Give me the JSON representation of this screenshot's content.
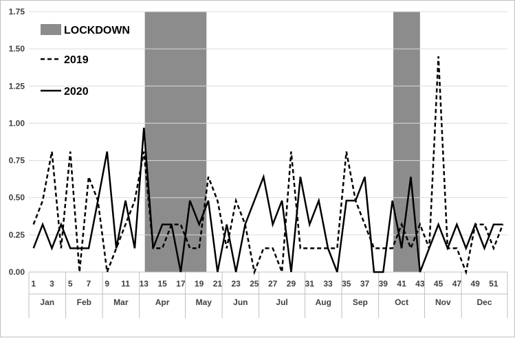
{
  "chart_data": {
    "type": "line",
    "title": "",
    "xlabel": "",
    "ylabel": "",
    "ylim": [
      0,
      1.75
    ],
    "yticks": [
      "0.00",
      "0.25",
      "0.50",
      "0.75",
      "1.00",
      "1.25",
      "1.50",
      "1.75"
    ],
    "grid": true,
    "legend_position": "top-left",
    "x": [
      1,
      2,
      3,
      4,
      5,
      6,
      7,
      8,
      9,
      10,
      11,
      12,
      13,
      14,
      15,
      16,
      17,
      18,
      19,
      20,
      21,
      22,
      23,
      24,
      25,
      26,
      27,
      28,
      29,
      30,
      31,
      32,
      33,
      34,
      35,
      36,
      37,
      38,
      39,
      40,
      41,
      42,
      43,
      44,
      45,
      46,
      47,
      48,
      49,
      50,
      51,
      52
    ],
    "x_tick_labels": [
      "1",
      "3",
      "5",
      "7",
      "9",
      "11",
      "13",
      "15",
      "17",
      "19",
      "21",
      "23",
      "25",
      "27",
      "29",
      "31",
      "33",
      "35",
      "37",
      "39",
      "41",
      "43",
      "45",
      "47",
      "49",
      "51"
    ],
    "months": [
      {
        "label": "Jan",
        "weeks": [
          1,
          4
        ]
      },
      {
        "label": "Feb",
        "weeks": [
          5,
          8
        ]
      },
      {
        "label": "Mar",
        "weeks": [
          9,
          12
        ]
      },
      {
        "label": "Apr",
        "weeks": [
          13,
          17
        ]
      },
      {
        "label": "May",
        "weeks": [
          18,
          21
        ]
      },
      {
        "label": "Jun",
        "weeks": [
          22,
          25
        ]
      },
      {
        "label": "Jul",
        "weeks": [
          26,
          30
        ]
      },
      {
        "label": "Aug",
        "weeks": [
          31,
          34
        ]
      },
      {
        "label": "Sep",
        "weeks": [
          35,
          38
        ]
      },
      {
        "label": "Oct",
        "weeks": [
          39,
          43
        ]
      },
      {
        "label": "Nov",
        "weeks": [
          44,
          47
        ]
      },
      {
        "label": "Dec",
        "weeks": [
          48,
          52
        ]
      }
    ],
    "lockdown_periods": [
      {
        "start_week": 12.6,
        "end_week": 19.3
      },
      {
        "start_week": 39.6,
        "end_week": 42.5
      }
    ],
    "legend": {
      "lockdown": "LOCKDOWN",
      "series_2019": "2019",
      "series_2020": "2020"
    },
    "series": [
      {
        "name": "2019",
        "style": "dashed",
        "color": "#000000",
        "values": [
          0.32,
          0.48,
          0.81,
          0.16,
          0.81,
          0.0,
          0.64,
          0.48,
          0.0,
          0.16,
          0.32,
          0.48,
          0.81,
          0.16,
          0.16,
          0.32,
          0.32,
          0.16,
          0.16,
          0.64,
          0.48,
          0.16,
          0.48,
          0.32,
          0.0,
          0.16,
          0.16,
          0.0,
          0.81,
          0.16,
          0.16,
          0.16,
          0.16,
          0.16,
          0.81,
          0.48,
          0.32,
          0.16,
          0.16,
          0.16,
          0.32,
          0.16,
          0.32,
          0.16,
          1.45,
          0.16,
          0.16,
          0.0,
          0.32,
          0.32,
          0.16,
          0.32
        ]
      },
      {
        "name": "2020",
        "style": "solid",
        "color": "#000000",
        "values": [
          0.16,
          0.32,
          0.16,
          0.32,
          0.16,
          0.16,
          0.16,
          0.48,
          0.81,
          0.16,
          0.48,
          0.16,
          0.97,
          0.16,
          0.32,
          0.32,
          0.0,
          0.48,
          0.32,
          0.48,
          0.0,
          0.32,
          0.0,
          0.32,
          0.48,
          0.64,
          0.32,
          0.48,
          0.0,
          0.64,
          0.32,
          0.48,
          0.16,
          0.0,
          0.48,
          0.48,
          0.64,
          0.0,
          0.0,
          0.48,
          0.16,
          0.64,
          0.0,
          0.16,
          0.32,
          0.16,
          0.32,
          0.16,
          0.32,
          0.16,
          0.32,
          0.32
        ]
      }
    ]
  }
}
